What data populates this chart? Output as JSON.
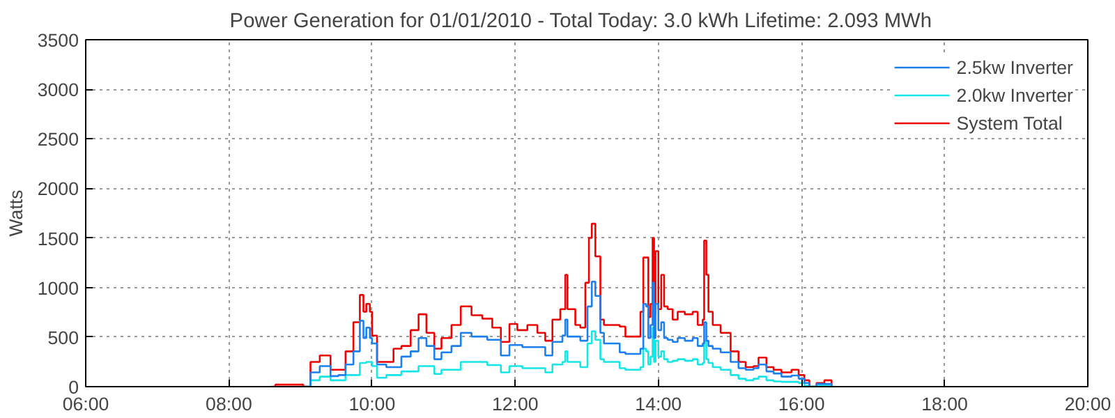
{
  "chart_data": {
    "type": "step",
    "title": "Power Generation for 01/01/2010 - Total Today: 3.0 kWh   Lifetime: 2.093 MWh",
    "ylabel": "Watts",
    "xlim": [
      6,
      20
    ],
    "ylim": [
      0,
      3500
    ],
    "xticks": [
      {
        "value": 6,
        "label": "06:00"
      },
      {
        "value": 8,
        "label": "08:00"
      },
      {
        "value": 10,
        "label": "10:00"
      },
      {
        "value": 12,
        "label": "12:00"
      },
      {
        "value": 14,
        "label": "14:00"
      },
      {
        "value": 16,
        "label": "16:00"
      },
      {
        "value": 18,
        "label": "18:00"
      },
      {
        "value": 20,
        "label": "20:00"
      }
    ],
    "yticks": [
      0,
      500,
      1000,
      1500,
      2000,
      2500,
      3000,
      3500
    ],
    "grid": true,
    "legend": "top right",
    "marker": "none",
    "line_style": "solid",
    "series": [
      {
        "name": "2.5kw Inverter",
        "color": "#1a7ff0",
        "x": [
          9.04,
          9.14,
          9.27,
          9.42,
          9.53,
          9.63,
          9.74,
          9.83,
          9.88,
          9.92,
          9.97,
          10.0,
          10.07,
          10.2,
          10.41,
          10.54,
          10.65,
          10.76,
          10.87,
          10.97,
          11.11,
          11.24,
          11.39,
          11.61,
          11.8,
          11.92,
          12.1,
          12.31,
          12.42,
          12.52,
          12.66,
          12.7,
          12.73,
          12.91,
          13.01,
          13.07,
          13.12,
          13.19,
          13.24,
          13.46,
          13.54,
          13.67,
          13.75,
          13.79,
          13.83,
          13.86,
          13.89,
          13.92,
          13.94,
          13.96,
          14.0,
          14.04,
          14.08,
          14.13,
          14.2,
          14.27,
          14.37,
          14.48,
          14.55,
          14.62,
          14.64,
          14.67,
          14.7,
          14.76,
          14.87,
          15.01,
          15.12,
          15.22,
          15.33,
          15.4,
          15.51,
          15.61,
          15.72,
          15.86,
          15.96,
          16.04,
          16.11,
          16.21,
          16.32,
          16.42
        ],
        "values": [
          0,
          144,
          207,
          106,
          117,
          223,
          356,
          665,
          490,
          596,
          490,
          436,
          223,
          197,
          303,
          356,
          490,
          410,
          277,
          346,
          410,
          543,
          505,
          473,
          314,
          420,
          399,
          399,
          314,
          452,
          516,
          676,
          505,
          463,
          809,
          1059,
          915,
          543,
          436,
          346,
          330,
          330,
          383,
          835,
          809,
          490,
          622,
          1048,
          490,
          835,
          570,
          649,
          490,
          473,
          452,
          490,
          463,
          490,
          410,
          436,
          649,
          463,
          410,
          383,
          346,
          250,
          186,
          170,
          186,
          223,
          154,
          133,
          101,
          112,
          80,
          37,
          0,
          27,
          27,
          0
        ]
      },
      {
        "name": "2.0kw Inverter",
        "color": "#12e6e6",
        "x": [
          9.04,
          9.14,
          9.27,
          9.42,
          9.63,
          9.83,
          9.92,
          10.0,
          10.07,
          10.2,
          10.41,
          10.65,
          10.87,
          10.97,
          11.24,
          11.61,
          11.8,
          11.92,
          12.1,
          12.31,
          12.42,
          12.52,
          12.66,
          12.7,
          12.73,
          12.91,
          13.01,
          13.07,
          13.12,
          13.19,
          13.24,
          13.46,
          13.54,
          13.67,
          13.75,
          13.79,
          13.83,
          13.86,
          13.89,
          13.92,
          13.94,
          13.96,
          14.0,
          14.04,
          14.08,
          14.13,
          14.2,
          14.27,
          14.37,
          14.48,
          14.55,
          14.62,
          14.64,
          14.67,
          14.7,
          14.76,
          14.87,
          15.01,
          15.12,
          15.22,
          15.33,
          15.4,
          15.51,
          15.61,
          15.72,
          15.86,
          15.96,
          16.04,
          16.11,
          16.21,
          16.32,
          16.42
        ],
        "values": [
          0,
          64,
          101,
          64,
          117,
          239,
          250,
          207,
          90,
          117,
          154,
          207,
          128,
          170,
          250,
          218,
          144,
          207,
          186,
          186,
          144,
          223,
          250,
          356,
          250,
          197,
          436,
          559,
          473,
          277,
          250,
          186,
          170,
          170,
          197,
          383,
          356,
          223,
          303,
          596,
          250,
          463,
          303,
          356,
          277,
          250,
          261,
          277,
          261,
          277,
          223,
          239,
          463,
          277,
          239,
          197,
          170,
          117,
          80,
          64,
          80,
          101,
          64,
          53,
          48,
          48,
          37,
          11,
          0,
          11,
          11,
          0
        ]
      },
      {
        "name": "System Total",
        "color": "#f00000",
        "x": [
          8.6,
          8.65,
          8.9,
          9.04,
          9.14,
          9.27,
          9.42,
          9.53,
          9.63,
          9.74,
          9.83,
          9.88,
          9.92,
          9.97,
          10.0,
          10.07,
          10.16,
          10.3,
          10.41,
          10.54,
          10.65,
          10.76,
          10.87,
          10.97,
          11.11,
          11.24,
          11.39,
          11.54,
          11.68,
          11.8,
          11.92,
          12.03,
          12.17,
          12.31,
          12.42,
          12.52,
          12.63,
          12.7,
          12.73,
          12.84,
          12.91,
          12.98,
          13.03,
          13.07,
          13.12,
          13.19,
          13.24,
          13.46,
          13.54,
          13.67,
          13.75,
          13.79,
          13.83,
          13.86,
          13.89,
          13.92,
          13.94,
          13.96,
          14.0,
          14.04,
          14.08,
          14.13,
          14.2,
          14.27,
          14.37,
          14.48,
          14.55,
          14.62,
          14.64,
          14.67,
          14.7,
          14.76,
          14.87,
          15.01,
          15.12,
          15.22,
          15.33,
          15.4,
          15.51,
          15.61,
          15.72,
          15.86,
          15.96,
          16.04,
          16.11,
          16.21,
          16.32,
          16.42
        ],
        "values": [
          0,
          20,
          20,
          0,
          250,
          314,
          170,
          170,
          356,
          650,
          925,
          755,
          835,
          755,
          515,
          250,
          250,
          383,
          410,
          570,
          730,
          543,
          383,
          490,
          622,
          810,
          720,
          686,
          596,
          452,
          633,
          570,
          622,
          543,
          463,
          676,
          782,
          1128,
          782,
          622,
          596,
          1048,
          1500,
          1644,
          1314,
          676,
          622,
          606,
          505,
          505,
          755,
          1303,
          1303,
          702,
          835,
          1500,
          730,
          1367,
          782,
          1128,
          809,
          782,
          676,
          755,
          730,
          755,
          622,
          676,
          1474,
          1128,
          755,
          622,
          543,
          356,
          250,
          197,
          207,
          293,
          197,
          170,
          144,
          170,
          117,
          64,
          0,
          37,
          64,
          0
        ]
      }
    ]
  }
}
